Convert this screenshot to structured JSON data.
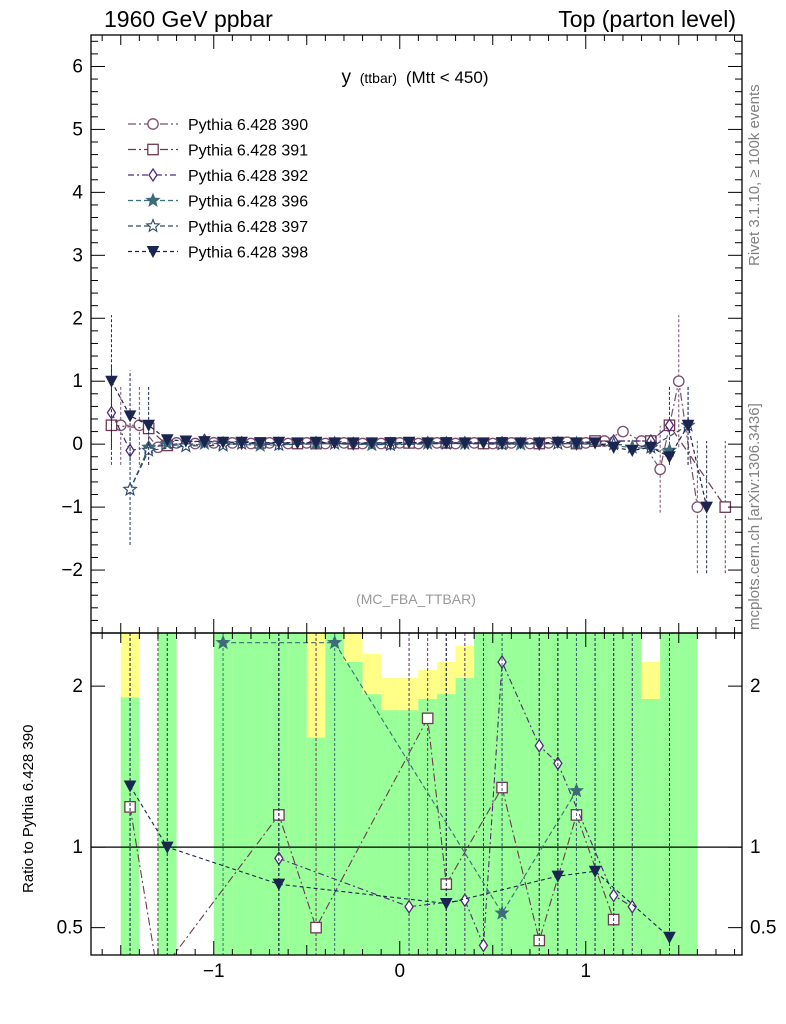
{
  "header": {
    "left": "1960 GeV ppbar",
    "right": "Top (parton level)"
  },
  "side_labels": {
    "rivet": "Rivet 3.1.10, ≥ 100k events",
    "mcplots": "mcplots.cern.ch [arXiv:1306.3436]"
  },
  "chart_data": [
    {
      "type": "line",
      "panel": "main",
      "title": "y",
      "title_sub": "(ttbar)",
      "title_tail": "(Mtt < 450)",
      "analysis_label": "(MC_FBA_TTBAR)",
      "xlim": [
        -1.66,
        1.84
      ],
      "ylim": [
        -3,
        6.5
      ],
      "yticks": [
        -2,
        -1,
        0,
        1,
        2,
        3,
        4,
        5,
        6
      ],
      "xticks": [
        -1,
        0,
        1
      ],
      "legend_position": "top-left",
      "series": [
        {
          "name": "Pythia 6.428 390",
          "color": "#7b4f6e",
          "marker": "circle-open",
          "dash": "8,3,2,3",
          "x": [
            -1.5,
            -1.4,
            -1.3,
            -1.2,
            -1.1,
            -1.0,
            -0.9,
            -0.8,
            -0.7,
            -0.6,
            -0.5,
            -0.4,
            -0.3,
            -0.2,
            -0.1,
            0.0,
            0.1,
            0.2,
            0.3,
            0.4,
            0.5,
            0.6,
            0.7,
            0.8,
            0.9,
            1.0,
            1.1,
            1.2,
            1.3,
            1.4,
            1.5,
            1.6
          ],
          "y": [
            0.3,
            0.3,
            -0.05,
            0.02,
            0.01,
            0.02,
            0.02,
            0.01,
            0.02,
            0.01,
            0.02,
            0.01,
            0.02,
            0.01,
            0.01,
            0.02,
            0.01,
            0.02,
            0.01,
            0.02,
            0.01,
            0.02,
            0.01,
            0.02,
            0.03,
            0.02,
            0.05,
            0.2,
            0.05,
            -0.4,
            1.0,
            -1.0
          ]
        },
        {
          "name": "Pythia 6.428 391",
          "color": "#6e3a52",
          "marker": "square-open",
          "dash": "8,3,2,3",
          "x": [
            -1.55,
            -1.35,
            -1.25,
            -0.75,
            -0.55,
            -0.45,
            -0.25,
            -0.05,
            0.05,
            0.25,
            0.45,
            0.55,
            0.75,
            0.95,
            1.05,
            1.35,
            1.45,
            1.75
          ],
          "y": [
            0.3,
            0.25,
            -0.02,
            0.02,
            0.01,
            0.01,
            0.01,
            0.02,
            0.02,
            0.02,
            0.01,
            0.02,
            0.01,
            0.01,
            0.05,
            0.05,
            0.3,
            -1.0
          ]
        },
        {
          "name": "Pythia 6.428 392",
          "color": "#4f2a7a",
          "marker": "diamond-open",
          "dash": "6,3,2,3",
          "x": [
            -1.55,
            -1.45,
            -1.35,
            -1.15,
            -1.05,
            -0.85,
            -0.65,
            -0.45,
            -0.25,
            -0.05,
            0.15,
            0.35,
            0.55,
            0.75,
            0.95,
            1.15,
            1.35,
            1.45
          ],
          "y": [
            0.5,
            -0.1,
            -0.05,
            0.02,
            0.06,
            0.02,
            0.01,
            0.02,
            0.01,
            0.01,
            0.02,
            0.02,
            0.02,
            0.01,
            0.01,
            0.05,
            0.05,
            0.3
          ]
        },
        {
          "name": "Pythia 6.428 396",
          "color": "#3d6b7a",
          "marker": "star-filled",
          "dash": "5,3",
          "x": [
            -1.45,
            -1.35,
            -1.25,
            -1.15,
            -1.05,
            -0.95,
            -0.75,
            -0.45,
            -0.15,
            0.15,
            0.35,
            0.65,
            0.95,
            1.25,
            1.45
          ],
          "y": [
            -0.72,
            -0.05,
            0.01,
            -0.03,
            0.01,
            0.01,
            -0.02,
            0.01,
            -0.01,
            0.01,
            0.01,
            0.0,
            0.01,
            -0.05,
            -0.1
          ]
        },
        {
          "name": "Pythia 6.428 397",
          "color": "#2e4a6e",
          "marker": "star-open",
          "dash": "5,3",
          "x": [
            -1.45,
            -1.35,
            -1.15,
            -0.95,
            -0.85,
            -0.65,
            -0.35,
            -0.05,
            0.25,
            0.55,
            0.85,
            1.15,
            1.35,
            1.55
          ],
          "y": [
            -0.72,
            -0.1,
            -0.03,
            -0.02,
            0.01,
            -0.01,
            0.01,
            -0.01,
            0.01,
            0.0,
            0.01,
            0.0,
            -0.05,
            0.3
          ]
        },
        {
          "name": "Pythia 6.428 398",
          "color": "#1a2550",
          "marker": "triangle-down",
          "dash": "4,3",
          "x": [
            -1.55,
            -1.45,
            -1.35,
            -1.25,
            -1.15,
            -1.05,
            -0.95,
            -0.85,
            -0.75,
            -0.65,
            -0.55,
            -0.45,
            -0.35,
            -0.25,
            -0.15,
            -0.05,
            0.05,
            0.15,
            0.25,
            0.35,
            0.45,
            0.55,
            0.65,
            0.75,
            0.85,
            0.95,
            1.05,
            1.15,
            1.25,
            1.35,
            1.45,
            1.55,
            1.65
          ],
          "y": [
            1.0,
            0.45,
            0.3,
            0.07,
            0.05,
            0.04,
            0.03,
            0.03,
            0.02,
            0.03,
            0.02,
            0.03,
            0.02,
            0.02,
            0.02,
            0.02,
            0.03,
            0.02,
            0.02,
            0.02,
            0.02,
            0.02,
            0.02,
            0.02,
            0.03,
            0.02,
            0.02,
            -0.05,
            -0.1,
            -0.05,
            -0.2,
            0.3,
            -1.0
          ]
        }
      ]
    },
    {
      "type": "line",
      "panel": "ratio",
      "ylabel": "Ratio to Pythia 6.428 390",
      "ylim": [
        0.33,
        2.33
      ],
      "yticks": [
        0.5,
        1,
        2
      ],
      "xticks": [
        -1,
        0,
        1
      ],
      "reference_line": 1,
      "band_edges": [
        -1.5,
        -1.4,
        -1.3,
        -1.2,
        -1.1,
        -1.0,
        -0.9,
        -0.8,
        -0.7,
        -0.6,
        -0.5,
        -0.4,
        -0.3,
        -0.2,
        -0.1,
        0.0,
        0.1,
        0.2,
        0.3,
        0.4,
        0.5,
        0.6,
        0.7,
        0.8,
        0.9,
        1.0,
        1.1,
        1.2,
        1.3,
        1.4,
        1.5,
        1.6
      ],
      "green_band": [
        [
          0.33,
          1.93
        ],
        null,
        [
          0.33,
          2.33
        ],
        null,
        null,
        [
          0.33,
          2.33
        ],
        [
          0.33,
          2.33
        ],
        [
          0.33,
          2.33
        ],
        [
          0.33,
          2.33
        ],
        [
          0.33,
          2.33
        ],
        [
          0.33,
          1.68
        ],
        [
          0.33,
          2.33
        ],
        [
          0.33,
          2.15
        ],
        [
          0.33,
          1.95
        ],
        [
          0.33,
          1.85
        ],
        [
          0.33,
          1.85
        ],
        [
          0.33,
          1.92
        ],
        [
          0.33,
          1.95
        ],
        [
          0.33,
          2.05
        ],
        [
          0.33,
          2.33
        ],
        [
          0.33,
          2.33
        ],
        [
          0.33,
          2.33
        ],
        [
          0.33,
          2.33
        ],
        [
          0.33,
          2.33
        ],
        [
          0.33,
          2.33
        ],
        [
          0.33,
          2.33
        ],
        [
          0.33,
          2.33
        ],
        [
          0.33,
          2.33
        ],
        [
          0.33,
          1.92
        ],
        [
          0.33,
          2.33
        ],
        [
          0.33,
          2.33
        ]
      ],
      "yellow_band": [
        [
          0.33,
          2.33
        ],
        null,
        [
          0.33,
          2.33
        ],
        null,
        null,
        [
          0.33,
          2.33
        ],
        [
          0.33,
          2.33
        ],
        [
          0.33,
          2.33
        ],
        [
          0.33,
          2.33
        ],
        [
          0.33,
          2.33
        ],
        [
          0.33,
          2.33
        ],
        [
          0.33,
          2.33
        ],
        [
          0.33,
          2.33
        ],
        [
          0.33,
          2.2
        ],
        [
          0.33,
          2.05
        ],
        [
          0.33,
          2.05
        ],
        [
          0.33,
          2.1
        ],
        [
          0.33,
          2.15
        ],
        [
          0.33,
          2.25
        ],
        [
          0.33,
          2.33
        ],
        [
          0.33,
          2.33
        ],
        [
          0.33,
          2.33
        ],
        [
          0.33,
          2.33
        ],
        [
          0.33,
          2.33
        ],
        [
          0.33,
          2.33
        ],
        [
          0.33,
          2.33
        ],
        [
          0.33,
          2.33
        ],
        [
          0.33,
          2.33
        ],
        [
          0.33,
          2.15
        ],
        [
          0.33,
          2.33
        ],
        [
          0.33,
          2.33
        ]
      ],
      "series": [
        {
          "name": "Pythia 6.428 391",
          "color": "#6e3a52",
          "marker": "square-open",
          "dash": "8,3,2,3",
          "x": [
            -1.45,
            -1.3,
            -0.65,
            -0.45,
            0.15,
            0.25,
            0.55,
            0.75,
            0.95,
            1.15
          ],
          "y": [
            1.25,
            0.2,
            1.2,
            0.5,
            1.8,
            0.77,
            1.37,
            0.42,
            1.2,
            0.55
          ]
        },
        {
          "name": "Pythia 6.428 392",
          "color": "#4f2a7a",
          "marker": "diamond-open",
          "dash": "6,3,2,3",
          "x": [
            -0.65,
            0.05,
            0.35,
            0.45,
            0.55,
            0.75,
            0.85,
            1.15,
            1.25
          ],
          "y": [
            0.93,
            0.63,
            0.67,
            0.39,
            2.15,
            1.63,
            1.52,
            0.7,
            0.63
          ]
        },
        {
          "name": "Pythia 6.428 396",
          "color": "#3d6b7a",
          "marker": "star-filled",
          "dash": "5,3",
          "x": [
            -0.95,
            -0.35,
            0.55,
            0.95
          ],
          "y": [
            2.27,
            2.27,
            0.59,
            1.35
          ]
        },
        {
          "name": "Pythia 6.428 398",
          "color": "#1a2550",
          "marker": "triangle-down",
          "dash": "4,3",
          "x": [
            -1.45,
            -1.25,
            -0.65,
            0.25,
            0.85,
            1.05,
            1.45
          ],
          "y": [
            1.38,
            1.0,
            0.77,
            0.65,
            0.82,
            0.85,
            0.44
          ]
        }
      ]
    }
  ]
}
